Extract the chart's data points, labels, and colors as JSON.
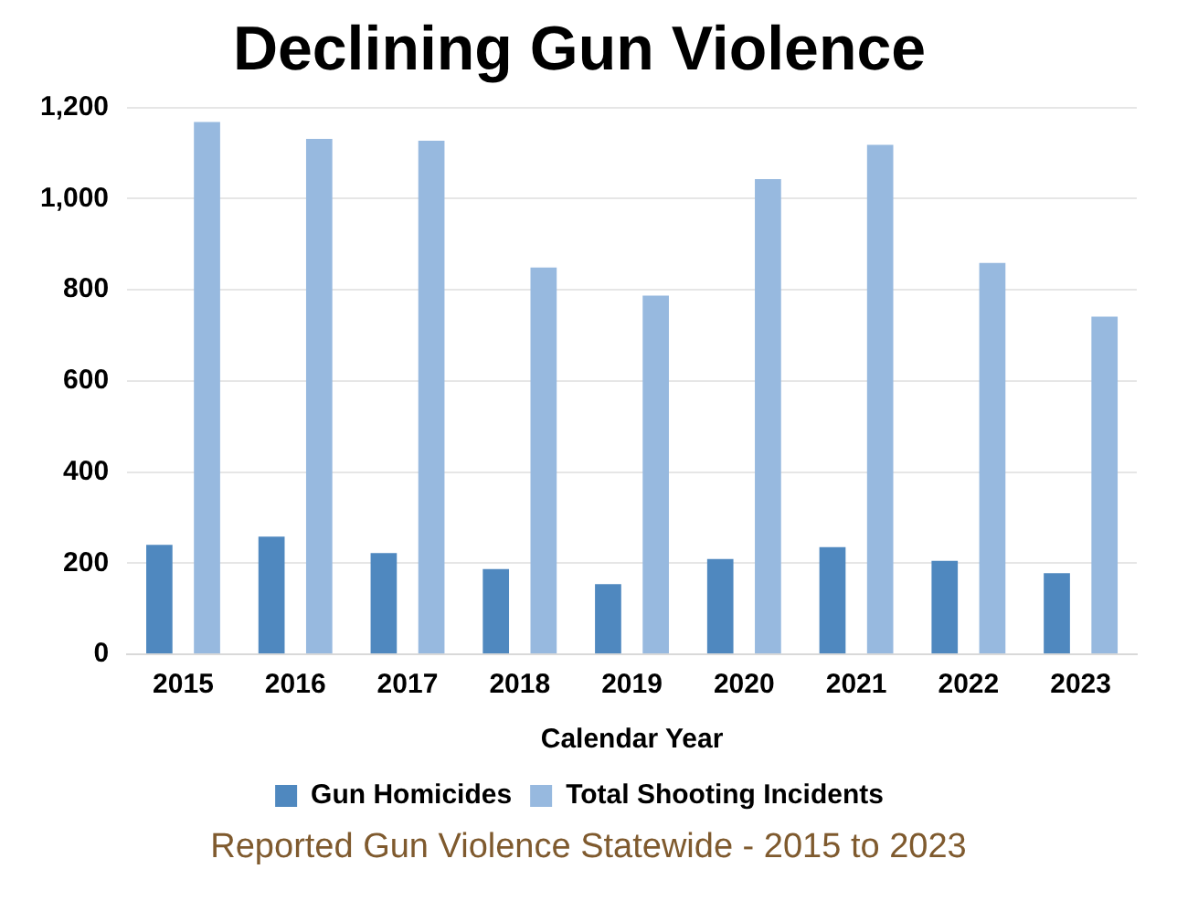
{
  "chart_data": {
    "type": "bar",
    "title": "Declining Gun Violence",
    "xlabel": "Calendar Year",
    "categories": [
      "2015",
      "2016",
      "2017",
      "2018",
      "2019",
      "2020",
      "2021",
      "2022",
      "2023"
    ],
    "series": [
      {
        "name": "Gun Homicides",
        "color": "#4f88bf",
        "values": [
          240,
          258,
          222,
          187,
          154,
          209,
          235,
          205,
          178
        ]
      },
      {
        "name": "Total Shooting Incidents",
        "color": "#97b9df",
        "values": [
          1168,
          1131,
          1127,
          849,
          787,
          1043,
          1118,
          859,
          741
        ]
      }
    ],
    "ylim": [
      0,
      1200
    ],
    "yticks": [
      0,
      200,
      400,
      600,
      800,
      {
        "value": 1000,
        "label": "1,000"
      },
      {
        "value": 1200,
        "label": "1,200"
      }
    ],
    "grid": "y",
    "legend": "bottom",
    "annotations": [
      "Reported Gun Violence Statewide - 2015 to 2023"
    ]
  }
}
